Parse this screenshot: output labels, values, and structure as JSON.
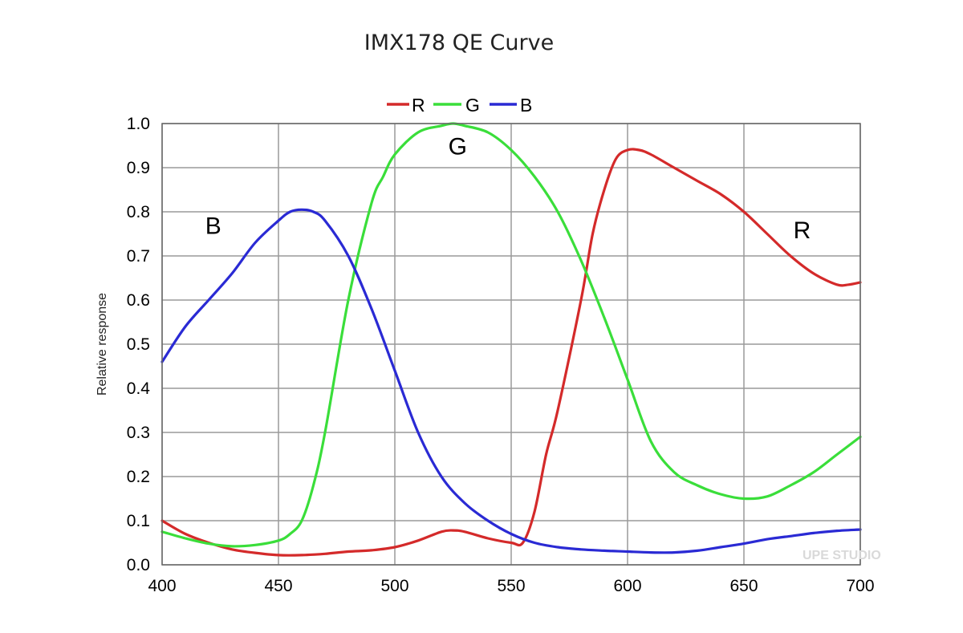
{
  "chart_data": {
    "type": "line",
    "title": "IMX178 QE Curve",
    "xlabel": "",
    "ylabel": "Relative response",
    "xlim": [
      400,
      700
    ],
    "ylim": [
      0,
      1.0
    ],
    "x_ticks": [
      "400",
      "450",
      "500",
      "550",
      "600",
      "650",
      "700"
    ],
    "y_ticks": [
      "0.0",
      "0.1",
      "0.2",
      "0.3",
      "0.4",
      "0.5",
      "0.6",
      "0.7",
      "0.8",
      "0.9",
      "1.0"
    ],
    "grid": true,
    "legend_position": "top",
    "series": [
      {
        "name": "R",
        "color": "#d42a2a",
        "x": [
          400,
          410,
          420,
          430,
          440,
          450,
          460,
          470,
          480,
          490,
          500,
          510,
          520,
          525,
          530,
          540,
          550,
          555,
          560,
          565,
          570,
          580,
          585,
          590,
          595,
          600,
          605,
          610,
          620,
          630,
          640,
          650,
          660,
          670,
          680,
          690,
          695,
          700
        ],
        "values": [
          0.1,
          0.07,
          0.05,
          0.035,
          0.027,
          0.022,
          0.022,
          0.025,
          0.03,
          0.033,
          0.04,
          0.055,
          0.075,
          0.078,
          0.075,
          0.06,
          0.05,
          0.05,
          0.12,
          0.25,
          0.35,
          0.6,
          0.75,
          0.85,
          0.92,
          0.94,
          0.94,
          0.93,
          0.9,
          0.87,
          0.84,
          0.8,
          0.75,
          0.7,
          0.66,
          0.635,
          0.635,
          0.64
        ]
      },
      {
        "name": "G",
        "color": "#3ade3a",
        "x": [
          400,
          410,
          420,
          430,
          440,
          450,
          455,
          460,
          465,
          470,
          480,
          490,
          495,
          500,
          510,
          520,
          525,
          530,
          540,
          550,
          560,
          570,
          580,
          590,
          600,
          610,
          620,
          630,
          640,
          650,
          660,
          670,
          680,
          690,
          700
        ],
        "values": [
          0.075,
          0.06,
          0.048,
          0.042,
          0.045,
          0.055,
          0.07,
          0.1,
          0.18,
          0.3,
          0.6,
          0.82,
          0.88,
          0.93,
          0.98,
          0.995,
          1.0,
          0.995,
          0.98,
          0.94,
          0.88,
          0.8,
          0.69,
          0.56,
          0.42,
          0.28,
          0.21,
          0.18,
          0.16,
          0.15,
          0.155,
          0.18,
          0.21,
          0.25,
          0.29
        ]
      },
      {
        "name": "B",
        "color": "#2a2ad4",
        "x": [
          400,
          410,
          420,
          430,
          440,
          450,
          455,
          460,
          465,
          470,
          480,
          490,
          500,
          510,
          520,
          530,
          540,
          550,
          560,
          570,
          580,
          590,
          600,
          610,
          620,
          630,
          640,
          650,
          660,
          670,
          680,
          690,
          700
        ],
        "values": [
          0.46,
          0.54,
          0.6,
          0.66,
          0.73,
          0.78,
          0.8,
          0.805,
          0.8,
          0.78,
          0.7,
          0.58,
          0.44,
          0.3,
          0.2,
          0.14,
          0.1,
          0.07,
          0.05,
          0.04,
          0.035,
          0.032,
          0.03,
          0.028,
          0.028,
          0.032,
          0.04,
          0.048,
          0.058,
          0.065,
          0.072,
          0.077,
          0.08
        ]
      }
    ],
    "annotations": [
      {
        "text": "B",
        "x": 422,
        "y": 0.75
      },
      {
        "text": "G",
        "x": 527,
        "y": 0.93
      },
      {
        "text": "R",
        "x": 675,
        "y": 0.74
      }
    ]
  },
  "watermark": "UPE STUDIO"
}
